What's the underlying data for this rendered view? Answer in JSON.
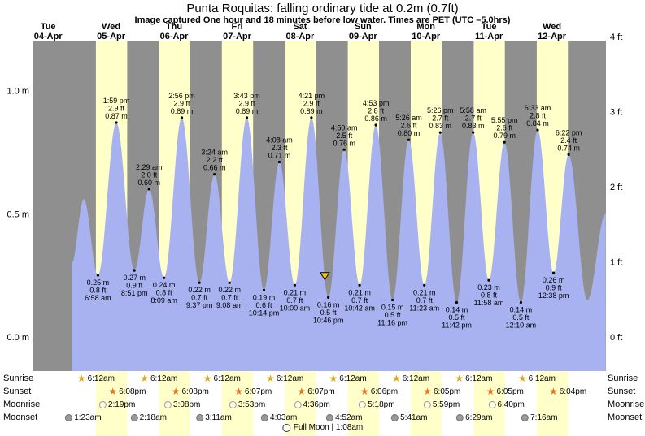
{
  "title": "Punta Roquitas: falling  ordinary tide at 0.2m (0.7ft)",
  "subtitle": "Image captured One hour and 18 minutes before low water. Times are PET (UTC –5.0hrs)",
  "colors": {
    "night": "#8f8f8f",
    "day_band": "#ffffc9",
    "tide_fill": "#a8b2f0",
    "day_label_red": "#dd0000",
    "sunrise_icon": "#e0a810",
    "sunset_icon": "#e87020",
    "marker_yellow": "#f2c40f"
  },
  "chart_data": {
    "type": "area",
    "title": "Punta Roquitas tide height",
    "days": [
      {
        "name": "Tue",
        "date": "04-Apr"
      },
      {
        "name": "Wed",
        "date": "05-Apr"
      },
      {
        "name": "Thu",
        "date": "06-Apr"
      },
      {
        "name": "Fri",
        "date": "07-Apr"
      },
      {
        "name": "Sat",
        "date": "08-Apr"
      },
      {
        "name": "Sun",
        "date": "09-Apr"
      },
      {
        "name": "Mon",
        "date": "10-Apr"
      },
      {
        "name": "Tue",
        "date": "11-Apr"
      },
      {
        "name": "Wed",
        "date": "12-Apr"
      }
    ],
    "axes": {
      "left_unit": "m",
      "right_unit": "ft",
      "left_ticks": [
        {
          "label": "1.0 m",
          "value": 1.0
        },
        {
          "label": "0.5 m",
          "value": 0.5
        },
        {
          "label": "0.0 m",
          "value": 0.0
        }
      ],
      "right_ticks": [
        {
          "label": "4 ft",
          "value": 4
        },
        {
          "label": "3 ft",
          "value": 3
        },
        {
          "label": "2 ft",
          "value": 2
        },
        {
          "label": "1 ft",
          "value": 1
        },
        {
          "label": "0 ft",
          "value": 0
        }
      ]
    },
    "tide_events": [
      {
        "day": 1,
        "time": "6:58 am",
        "height_m": "0.25 m",
        "height_ft": "0.8 ft",
        "type": "low"
      },
      {
        "day": 1,
        "time": "1:59 pm",
        "height_m": "0.87 m",
        "height_ft": "2.9 ft",
        "type": "high"
      },
      {
        "day": 1,
        "time": "8:51 pm",
        "height_m": "0.27 m",
        "height_ft": "0.9 ft",
        "type": "low"
      },
      {
        "day": 2,
        "time": "2:29 am",
        "height_m": "0.60 m",
        "height_ft": "2.0 ft",
        "type": "high"
      },
      {
        "day": 2,
        "time": "8:09 am",
        "height_m": "0.24 m",
        "height_ft": "0.8 ft",
        "type": "low"
      },
      {
        "day": 2,
        "time": "2:56 pm",
        "height_m": "0.89 m",
        "height_ft": "2.9 ft",
        "type": "high"
      },
      {
        "day": 2,
        "time": "9:37 pm",
        "height_m": "0.22 m",
        "height_ft": "0.7 ft",
        "type": "low"
      },
      {
        "day": 3,
        "time": "3:24 am",
        "height_m": "0.66 m",
        "height_ft": "2.2 ft",
        "type": "high"
      },
      {
        "day": 3,
        "time": "9:08 am",
        "height_m": "0.22 m",
        "height_ft": "0.7 ft",
        "type": "low"
      },
      {
        "day": 3,
        "time": "3:43 pm",
        "height_m": "0.89 m",
        "height_ft": "2.9 ft",
        "type": "high"
      },
      {
        "day": 3,
        "time": "10:14 pm",
        "height_m": "0.19 m",
        "height_ft": "0.6 ft",
        "type": "low"
      },
      {
        "day": 4,
        "time": "4:08 am",
        "height_m": "0.71 m",
        "height_ft": "2.3 ft",
        "type": "high"
      },
      {
        "day": 4,
        "time": "10:00 am",
        "height_m": "0.21 m",
        "height_ft": "0.7 ft",
        "type": "low"
      },
      {
        "day": 4,
        "time": "4:21 pm",
        "height_m": "0.89 m",
        "height_ft": "2.9 ft",
        "type": "high"
      },
      {
        "day": 4,
        "time": "10:46 pm",
        "height_m": "0.16 m",
        "height_ft": "0.5 ft",
        "type": "low"
      },
      {
        "day": 5,
        "time": "4:50 am",
        "height_m": "0.76 m",
        "height_ft": "2.5 ft",
        "type": "high"
      },
      {
        "day": 5,
        "time": "10:42 am",
        "height_m": "0.21 m",
        "height_ft": "0.7 ft",
        "type": "low"
      },
      {
        "day": 5,
        "time": "4:53 pm",
        "height_m": "0.86 m",
        "height_ft": "2.8 ft",
        "type": "high"
      },
      {
        "day": 5,
        "time": "11:16 pm",
        "height_m": "0.15 m",
        "height_ft": "0.5 ft",
        "type": "low"
      },
      {
        "day": 6,
        "time": "5:26 am",
        "height_m": "0.80 m",
        "height_ft": "2.6 ft",
        "type": "high"
      },
      {
        "day": 6,
        "time": "11:23 am",
        "height_m": "0.21 m",
        "height_ft": "0.7 ft",
        "type": "low"
      },
      {
        "day": 6,
        "time": "5:26 pm",
        "height_m": "0.83 m",
        "height_ft": "2.7 ft",
        "type": "high"
      },
      {
        "day": 6,
        "time": "11:42 pm",
        "height_m": "0.14 m",
        "height_ft": "0.5 ft",
        "type": "low"
      },
      {
        "day": 7,
        "time": "5:58 am",
        "height_m": "0.83 m",
        "height_ft": "2.7 ft",
        "type": "high"
      },
      {
        "day": 7,
        "time": "11:58 am",
        "height_m": "0.23 m",
        "height_ft": "0.8 ft",
        "type": "low"
      },
      {
        "day": 7,
        "time": "5:55 pm",
        "height_m": "0.79 m",
        "height_ft": "2.6 ft",
        "type": "high"
      },
      {
        "day": 8,
        "time": "12:10 am",
        "height_m": "0.14 m",
        "height_ft": "0.5 ft",
        "type": "low"
      },
      {
        "day": 8,
        "time": "6:33 am",
        "height_m": "0.84 m",
        "height_ft": "2.8 ft",
        "type": "high"
      },
      {
        "day": 8,
        "time": "12:38 pm",
        "height_m": "0.26 m",
        "height_ft": "0.9 ft",
        "type": "low"
      },
      {
        "day": 8,
        "time": "6:22 pm",
        "height_m": "0.74 m",
        "height_ft": "2.4 ft",
        "type": "high"
      }
    ],
    "curve_shape_points": [
      {
        "day": 0,
        "time": "9:00 pm",
        "height_m": "0.30 m",
        "phantom": true
      },
      {
        "day": 1,
        "time": "1:35 am",
        "height_m": "0.56 m",
        "phantom": true
      },
      {
        "day": 9,
        "time": "1:30 am",
        "height_m": "0.15 m",
        "phantom": true
      },
      {
        "day": 9,
        "time": "8:30 am",
        "height_m": "0.50 m",
        "phantom": true
      }
    ],
    "current_marker": {
      "day": 4,
      "time": "9:28 pm"
    }
  },
  "astro": {
    "rows": [
      {
        "label": "Sunrise",
        "icon": "sunrise-star",
        "entries": [
          {
            "day": 1,
            "time": "6:12am"
          },
          {
            "day": 2,
            "time": "6:12am"
          },
          {
            "day": 3,
            "time": "6:12am"
          },
          {
            "day": 4,
            "time": "6:12am"
          },
          {
            "day": 5,
            "time": "6:12am"
          },
          {
            "day": 6,
            "time": "6:12am"
          },
          {
            "day": 7,
            "time": "6:12am"
          },
          {
            "day": 8,
            "time": "6:12am"
          }
        ]
      },
      {
        "label": "Sunset",
        "icon": "sunset-star",
        "entries": [
          {
            "day": 1,
            "time": "6:08pm"
          },
          {
            "day": 2,
            "time": "6:08pm"
          },
          {
            "day": 3,
            "time": "6:07pm"
          },
          {
            "day": 4,
            "time": "6:07pm"
          },
          {
            "day": 5,
            "time": "6:06pm"
          },
          {
            "day": 6,
            "time": "6:05pm"
          },
          {
            "day": 7,
            "time": "6:05pm"
          },
          {
            "day": 8,
            "time": "6:04pm"
          }
        ]
      },
      {
        "label": "Moonrise",
        "icon": "moon-light",
        "entries": [
          {
            "day": 1,
            "time": "2:19pm"
          },
          {
            "day": 2,
            "time": "3:08pm"
          },
          {
            "day": 3,
            "time": "3:53pm"
          },
          {
            "day": 4,
            "time": "4:36pm"
          },
          {
            "day": 5,
            "time": "5:18pm"
          },
          {
            "day": 6,
            "time": "5:59pm"
          },
          {
            "day": 7,
            "time": "6:40pm"
          }
        ]
      },
      {
        "label": "Moonset",
        "icon": "moon-gray",
        "entries": [
          {
            "day": 1,
            "time": "1:23am"
          },
          {
            "day": 2,
            "time": "2:18am"
          },
          {
            "day": 3,
            "time": "3:11am"
          },
          {
            "day": 4,
            "time": "4:03am"
          },
          {
            "day": 5,
            "time": "4:52am"
          },
          {
            "day": 6,
            "time": "5:41am"
          },
          {
            "day": 7,
            "time": "6:29am"
          },
          {
            "day": 8,
            "time": "7:16am"
          }
        ]
      }
    ],
    "footer": {
      "icon": "full-moon",
      "text": "Full Moon | 1:08am"
    }
  }
}
